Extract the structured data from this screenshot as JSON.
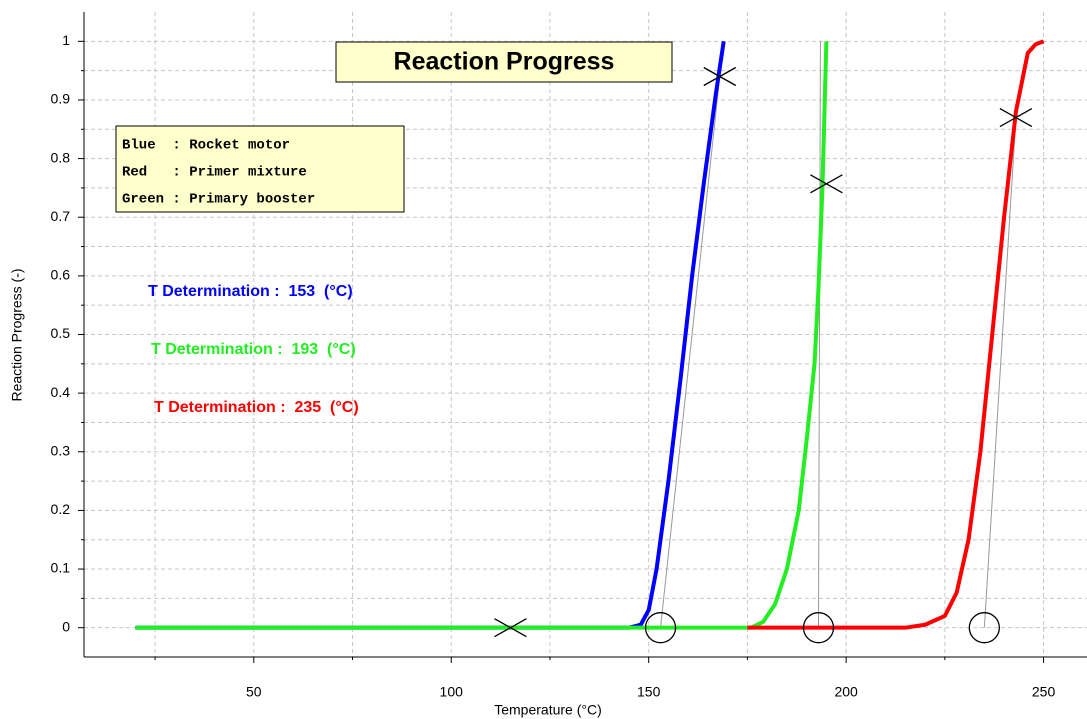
{
  "chart_data": {
    "type": "line",
    "title": "Reaction Progress",
    "xlabel": "Temperature (°C)",
    "ylabel": "Reaction Progress (-)",
    "xlim": [
      7,
      261
    ],
    "ylim": [
      -0.05,
      1.05
    ],
    "xticks": [
      50,
      100,
      150,
      200,
      250
    ],
    "yticks": [
      0,
      0.1,
      0.2,
      0.3,
      0.4,
      0.5,
      0.6,
      0.7,
      0.8,
      0.9,
      1
    ],
    "xminor": [
      25,
      75,
      125,
      175,
      225
    ],
    "yminor": [
      0.05,
      0.15,
      0.25,
      0.35,
      0.45,
      0.55,
      0.65,
      0.75,
      0.85,
      0.95
    ],
    "grid": true,
    "series": [
      {
        "color": "#0000ff",
        "x": [
          20,
          100,
          145,
          148,
          150,
          152,
          155,
          158,
          161,
          164,
          167,
          169
        ],
        "values": [
          0,
          0,
          0,
          0.005,
          0.03,
          0.1,
          0.25,
          0.42,
          0.6,
          0.76,
          0.91,
          1
        ]
      },
      {
        "color": "#22ee22",
        "x": [
          20,
          100,
          150,
          176,
          179,
          182,
          185,
          188,
          190,
          192,
          193,
          194,
          195
        ],
        "values": [
          0,
          0,
          0,
          0,
          0.01,
          0.04,
          0.1,
          0.2,
          0.32,
          0.45,
          0.58,
          0.75,
          1
        ]
      },
      {
        "color": "#ff0000",
        "x": [
          175,
          200,
          215,
          220,
          225,
          228,
          231,
          234,
          237,
          240,
          243,
          246,
          248,
          250
        ],
        "values": [
          0,
          0,
          0,
          0.005,
          0.02,
          0.06,
          0.15,
          0.3,
          0.5,
          0.7,
          0.88,
          0.98,
          0.995,
          1
        ]
      }
    ],
    "tangent_lines": [
      {
        "x": [
          153,
          168
        ],
        "y": [
          0,
          0.94
        ]
      },
      {
        "x": [
          193,
          193.5
        ],
        "y": [
          0,
          1
        ]
      },
      {
        "x": [
          235,
          243
        ],
        "y": [
          0,
          0.87
        ]
      }
    ],
    "cross_markers": {
      "x": [
        115,
        168,
        195,
        243
      ],
      "y": [
        0,
        0.94,
        0.757,
        0.87
      ]
    },
    "circle_markers": {
      "x": [
        153,
        193,
        235
      ],
      "y": [
        0,
        0,
        0
      ]
    },
    "legend_lines": [
      "Blue  : Rocket motor",
      "Red   : Primer mixture",
      "Green : Primary booster"
    ],
    "annotations": [
      {
        "text": "T Determination :  153  (°C)",
        "color": "#0000ff"
      },
      {
        "text": "T Determination :  193  (°C)",
        "color": "#22ee22"
      },
      {
        "text": "T Determination :  235  (°C)",
        "color": "#ff0000"
      }
    ]
  }
}
